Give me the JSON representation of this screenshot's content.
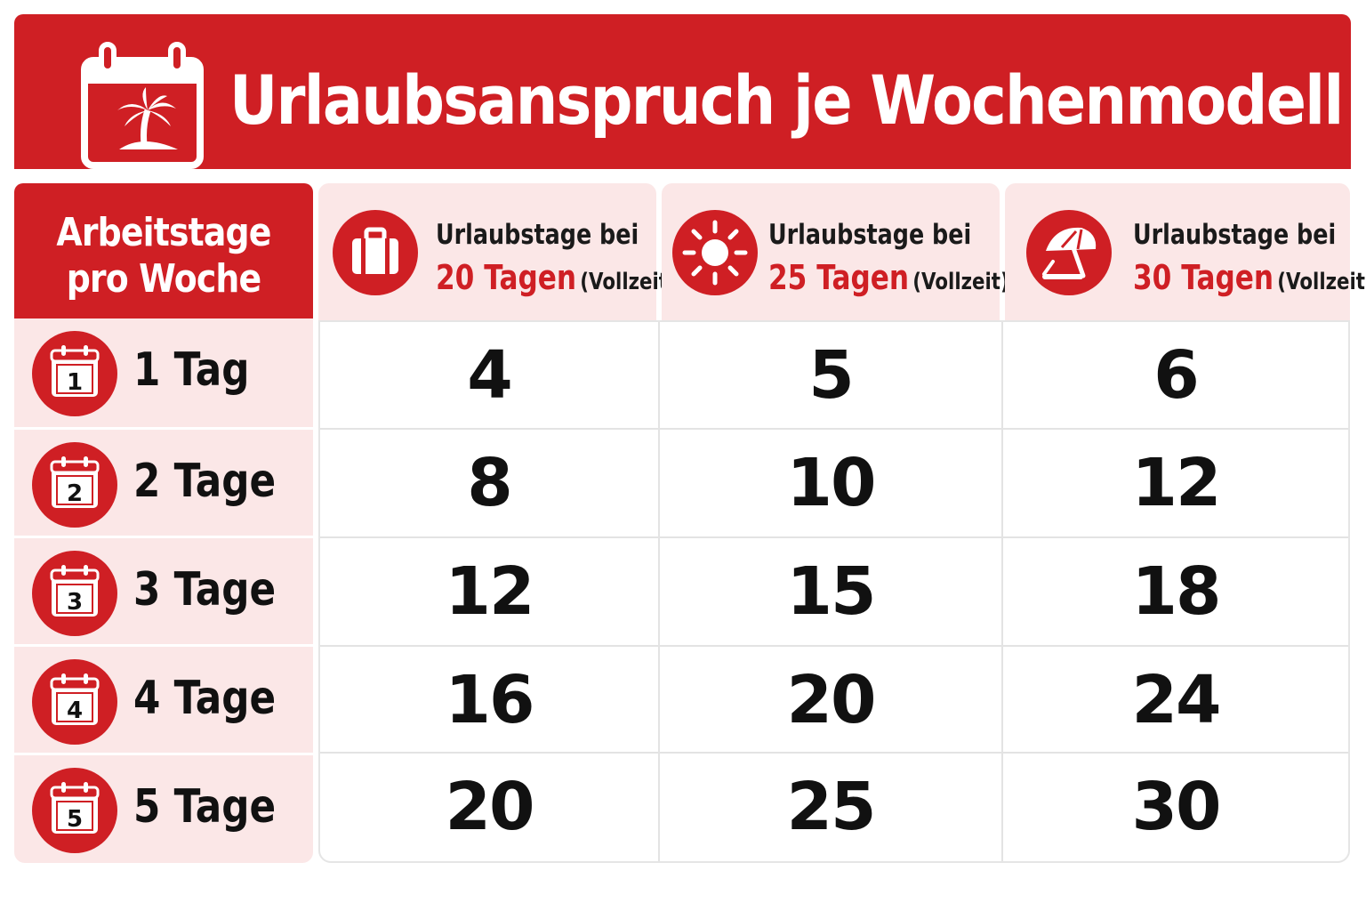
{
  "header": {
    "title": "Urlaubsanspruch je Wochenmodell",
    "icon": "calendar-palm-icon",
    "brand_color": "#cf1f24"
  },
  "table": {
    "row_header": {
      "line1": "Arbeitstage",
      "line2": "pro Woche"
    },
    "columns": [
      {
        "line1": "Urlaubstage bei",
        "days": "20 Tagen",
        "note": "(Vollzeit)",
        "icon": "suitcase-icon"
      },
      {
        "line1": "Urlaubstage bei",
        "days": "25 Tagen",
        "note": "(Vollzeit)",
        "icon": "sun-icon"
      },
      {
        "line1": "Urlaubstage bei",
        "days": "30 Tagen",
        "note": "(Vollzeit)",
        "icon": "beach-umbrella-icon"
      }
    ],
    "rows": [
      {
        "num": "1",
        "label": "1 Tag",
        "values": [
          "4",
          "5",
          "6"
        ]
      },
      {
        "num": "2",
        "label": "2 Tage",
        "values": [
          "8",
          "10",
          "12"
        ]
      },
      {
        "num": "3",
        "label": "3 Tage",
        "values": [
          "12",
          "15",
          "18"
        ]
      },
      {
        "num": "4",
        "label": "4 Tage",
        "values": [
          "16",
          "20",
          "24"
        ]
      },
      {
        "num": "5",
        "label": "5 Tage",
        "values": [
          "20",
          "25",
          "30"
        ]
      }
    ]
  }
}
